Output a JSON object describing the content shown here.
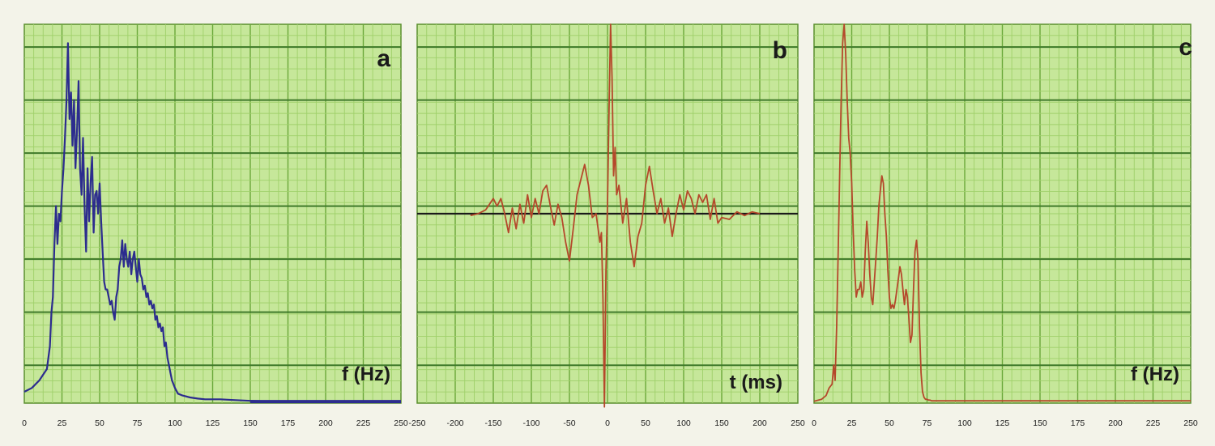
{
  "chart_data": [
    {
      "type": "line",
      "panel_label": "a",
      "xlabel": "f (Hz)",
      "ylabel": "",
      "xlim": [
        0,
        250
      ],
      "ylim": [
        0,
        1
      ],
      "xticks": [
        "0",
        "25",
        "50",
        "75",
        "100",
        "125",
        "150",
        "175",
        "200",
        "225",
        "250"
      ],
      "grid": true,
      "line_color": "#2c2c8e",
      "x": [
        0,
        5,
        10,
        15,
        17,
        18,
        19,
        20,
        21,
        22,
        23,
        24,
        25,
        26,
        27,
        28,
        29,
        30,
        31,
        32,
        33,
        34,
        35,
        36,
        37,
        38,
        39,
        40,
        41,
        42,
        43,
        44,
        45,
        46,
        47,
        48,
        49,
        50,
        51,
        52,
        53,
        54,
        55,
        56,
        57,
        58,
        59,
        60,
        61,
        62,
        63,
        64,
        65,
        66,
        67,
        68,
        69,
        70,
        71,
        72,
        73,
        74,
        75,
        76,
        77,
        78,
        79,
        80,
        81,
        82,
        83,
        84,
        85,
        86,
        87,
        88,
        89,
        90,
        91,
        92,
        93,
        94,
        95,
        96,
        97,
        98,
        100,
        102,
        105,
        110,
        115,
        120,
        130,
        140,
        150,
        160,
        175,
        200,
        225,
        250
      ],
      "values": [
        0.03,
        0.04,
        0.06,
        0.09,
        0.15,
        0.24,
        0.28,
        0.42,
        0.52,
        0.42,
        0.5,
        0.48,
        0.56,
        0.62,
        0.7,
        0.8,
        0.95,
        0.75,
        0.82,
        0.68,
        0.8,
        0.62,
        0.72,
        0.85,
        0.62,
        0.55,
        0.7,
        0.52,
        0.4,
        0.62,
        0.48,
        0.58,
        0.65,
        0.45,
        0.55,
        0.56,
        0.5,
        0.58,
        0.48,
        0.4,
        0.32,
        0.3,
        0.3,
        0.28,
        0.26,
        0.27,
        0.24,
        0.22,
        0.28,
        0.3,
        0.36,
        0.38,
        0.43,
        0.36,
        0.42,
        0.38,
        0.36,
        0.4,
        0.34,
        0.38,
        0.4,
        0.36,
        0.32,
        0.38,
        0.34,
        0.33,
        0.3,
        0.31,
        0.28,
        0.29,
        0.26,
        0.27,
        0.25,
        0.26,
        0.22,
        0.23,
        0.2,
        0.21,
        0.19,
        0.2,
        0.15,
        0.16,
        0.12,
        0.1,
        0.08,
        0.06,
        0.04,
        0.025,
        0.02,
        0.015,
        0.012,
        0.01,
        0.01,
        0.008,
        0.006,
        0.005,
        0.005,
        0.004,
        0.004,
        0.004
      ]
    },
    {
      "type": "line",
      "panel_label": "b",
      "xlabel": "t (ms)",
      "ylabel": "",
      "xlim": [
        -250,
        250
      ],
      "ylim": [
        -1,
        1
      ],
      "xticks": [
        "-250",
        "-200",
        "-150",
        "-100",
        "-50",
        "0",
        "50",
        "100",
        "150",
        "200",
        "250"
      ],
      "grid": true,
      "line_color": "#b5482b",
      "baseline_color": "#1a1a1a",
      "x": [
        -180,
        -170,
        -160,
        -150,
        -145,
        -140,
        -135,
        -130,
        -125,
        -120,
        -115,
        -110,
        -105,
        -100,
        -95,
        -90,
        -85,
        -80,
        -75,
        -70,
        -65,
        -60,
        -55,
        -50,
        -45,
        -40,
        -35,
        -30,
        -25,
        -20,
        -15,
        -10,
        -8,
        -6,
        -4,
        -2,
        0,
        2,
        4,
        6,
        8,
        10,
        12,
        15,
        20,
        25,
        30,
        35,
        40,
        45,
        50,
        55,
        60,
        65,
        70,
        75,
        80,
        85,
        90,
        95,
        100,
        105,
        110,
        115,
        120,
        125,
        130,
        135,
        140,
        145,
        150,
        160,
        170,
        180,
        190,
        200
      ],
      "values": [
        -0.01,
        0.0,
        0.02,
        0.08,
        0.04,
        0.08,
        0.0,
        -0.1,
        0.03,
        -0.08,
        0.05,
        -0.05,
        0.1,
        -0.02,
        0.08,
        0.0,
        0.12,
        0.15,
        0.04,
        -0.06,
        0.05,
        -0.02,
        -0.15,
        -0.25,
        -0.08,
        0.1,
        0.18,
        0.26,
        0.15,
        -0.02,
        0.0,
        -0.15,
        -0.1,
        -0.45,
        -1.02,
        -0.3,
        0.05,
        0.55,
        1.0,
        0.72,
        0.2,
        0.35,
        0.1,
        0.15,
        -0.05,
        0.08,
        -0.15,
        -0.28,
        -0.12,
        -0.05,
        0.15,
        0.25,
        0.12,
        0.0,
        0.08,
        -0.05,
        0.03,
        -0.12,
        0.0,
        0.1,
        0.02,
        0.12,
        0.08,
        0.0,
        0.1,
        0.06,
        0.1,
        -0.03,
        0.08,
        -0.05,
        -0.02,
        -0.03,
        0.01,
        -0.01,
        0.01,
        0.0
      ]
    },
    {
      "type": "line",
      "panel_label": "c",
      "xlabel": "f (Hz)",
      "ylabel": "",
      "xlim": [
        0,
        250
      ],
      "ylim": [
        0,
        1
      ],
      "xticks": [
        "0",
        "25",
        "50",
        "75",
        "100",
        "125",
        "150",
        "175",
        "200",
        "225",
        "250"
      ],
      "grid": true,
      "line_color": "#b5482b",
      "x": [
        0,
        5,
        8,
        10,
        12,
        13,
        14,
        15,
        16,
        17,
        18,
        19,
        20,
        21,
        22,
        23,
        24,
        25,
        26,
        27,
        28,
        29,
        30,
        31,
        32,
        33,
        34,
        35,
        36,
        37,
        38,
        39,
        40,
        41,
        42,
        43,
        44,
        45,
        46,
        47,
        48,
        49,
        50,
        51,
        52,
        53,
        54,
        55,
        56,
        57,
        58,
        59,
        60,
        61,
        62,
        63,
        64,
        65,
        66,
        67,
        68,
        69,
        70,
        71,
        72,
        73,
        74,
        75,
        76,
        77,
        78,
        79,
        80,
        81,
        82,
        83,
        84,
        85,
        86,
        87,
        88,
        89,
        90,
        92,
        95,
        100,
        125,
        150,
        175,
        200,
        225,
        250
      ],
      "values": [
        0.005,
        0.01,
        0.02,
        0.04,
        0.05,
        0.1,
        0.06,
        0.2,
        0.4,
        0.6,
        0.8,
        0.95,
        1.0,
        0.92,
        0.8,
        0.7,
        0.66,
        0.58,
        0.45,
        0.35,
        0.28,
        0.3,
        0.3,
        0.32,
        0.28,
        0.3,
        0.4,
        0.48,
        0.42,
        0.34,
        0.28,
        0.26,
        0.32,
        0.38,
        0.44,
        0.52,
        0.56,
        0.6,
        0.58,
        0.5,
        0.44,
        0.35,
        0.28,
        0.25,
        0.26,
        0.25,
        0.27,
        0.3,
        0.33,
        0.36,
        0.34,
        0.3,
        0.26,
        0.3,
        0.28,
        0.22,
        0.16,
        0.18,
        0.3,
        0.4,
        0.43,
        0.38,
        0.2,
        0.08,
        0.03,
        0.015,
        0.01,
        0.01,
        0.008,
        0.008,
        0.006,
        0.006,
        0.006,
        0.006,
        0.006,
        0.006,
        0.006,
        0.006,
        0.006,
        0.006,
        0.006,
        0.006,
        0.006,
        0.006,
        0.006,
        0.006,
        0.006,
        0.006,
        0.006,
        0.006,
        0.006,
        0.006
      ]
    }
  ]
}
